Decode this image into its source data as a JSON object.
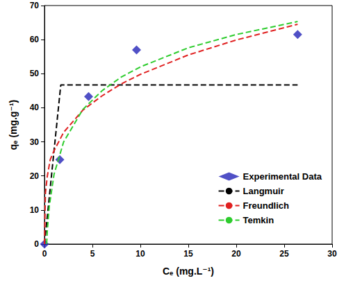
{
  "chart_data": {
    "type": "line",
    "x_label": "Cₑ (mg.L⁻¹)",
    "y_label": "qₑ (mg.g⁻¹)",
    "xlim": [
      0,
      30
    ],
    "xticks": [
      0,
      5,
      10,
      15,
      20,
      25,
      30
    ],
    "ylim": [
      0,
      70
    ],
    "yticks": [
      0,
      10,
      20,
      30,
      40,
      50,
      60,
      70
    ],
    "grid": false,
    "legend": "lower right",
    "series": [
      {
        "name": "Experimental Data",
        "type": "scatter",
        "marker": "diamond",
        "color": "#2424b8",
        "x": [
          0,
          1.6,
          4.6,
          9.6,
          26.4
        ],
        "values": [
          0,
          24.8,
          43.3,
          57.0,
          61.5
        ]
      },
      {
        "name": "Langmuir",
        "type": "line",
        "line_style": "dashed",
        "color": "#000000",
        "x": [
          0,
          1.7,
          26.4
        ],
        "values": [
          0,
          46.7,
          46.7
        ]
      },
      {
        "name": "Freundlich",
        "type": "line",
        "line_style": "dashed",
        "color": "#e02020",
        "x": [
          0,
          0.1,
          0.3,
          0.6,
          1,
          2,
          4,
          6,
          8,
          10,
          15,
          20,
          26.4
        ],
        "values": [
          0,
          15.0,
          20.0,
          24.8,
          27.4,
          32.8,
          39.3,
          43.5,
          47.0,
          49.8,
          55.5,
          59.9,
          64.5
        ]
      },
      {
        "name": "Temkin",
        "type": "line",
        "line_style": "dashed",
        "color": "#2ecc2e",
        "x": [
          0.23,
          0.25,
          0.3,
          0.5,
          1,
          2,
          4,
          6,
          8,
          10,
          15,
          20,
          26.4
        ],
        "values": [
          0,
          1.6,
          4.1,
          11.1,
          20.5,
          30.0,
          39.5,
          45.0,
          49.0,
          52.0,
          57.6,
          61.5,
          65.3
        ]
      }
    ]
  }
}
